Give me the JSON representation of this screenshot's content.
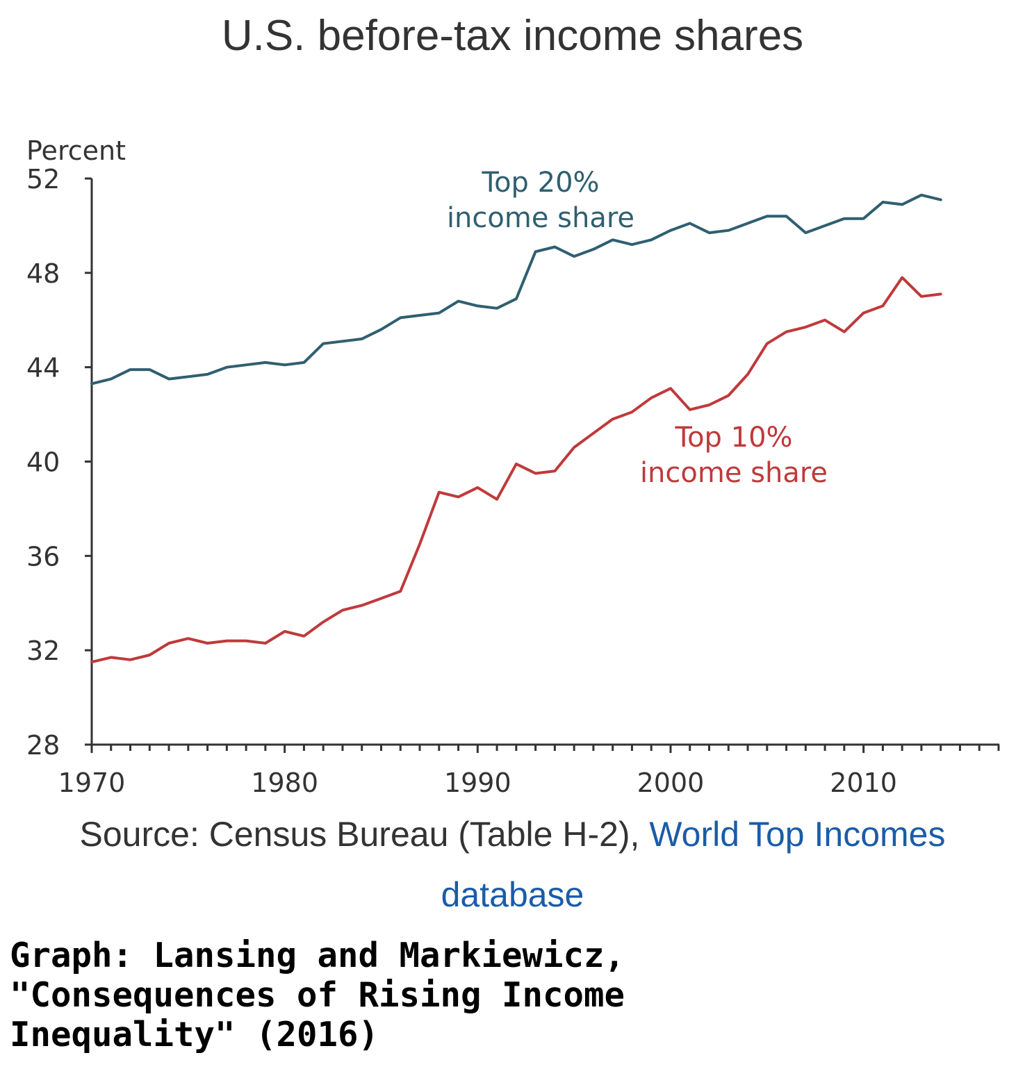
{
  "title": "U.S. before-tax income shares",
  "chart_data": {
    "type": "line",
    "ylabel": "Percent",
    "xlabel": "",
    "ylim": [
      28,
      52
    ],
    "yticks": [
      28,
      32,
      36,
      40,
      44,
      48,
      52
    ],
    "xlim": [
      1970,
      2017
    ],
    "xticks": [
      1970,
      1980,
      1990,
      2000,
      2010
    ],
    "grid": false,
    "x": [
      1970,
      1971,
      1972,
      1973,
      1974,
      1975,
      1976,
      1977,
      1978,
      1979,
      1980,
      1981,
      1982,
      1983,
      1984,
      1985,
      1986,
      1987,
      1988,
      1989,
      1990,
      1991,
      1992,
      1993,
      1994,
      1995,
      1996,
      1997,
      1998,
      1999,
      2000,
      2001,
      2002,
      2003,
      2004,
      2005,
      2006,
      2007,
      2008,
      2009,
      2010,
      2011,
      2012,
      2013,
      2014
    ],
    "series": [
      {
        "name": "Top 20% income share",
        "label_line1": "Top 20%",
        "label_line2": "income share",
        "color": "#2f5f70",
        "values": [
          43.3,
          43.5,
          43.9,
          43.9,
          43.5,
          43.6,
          43.7,
          44.0,
          44.1,
          44.2,
          44.1,
          44.2,
          45.0,
          45.1,
          45.2,
          45.6,
          46.1,
          46.2,
          46.3,
          46.8,
          46.6,
          46.5,
          46.9,
          48.9,
          49.1,
          48.7,
          49.0,
          49.4,
          49.2,
          49.4,
          49.8,
          50.1,
          49.7,
          49.8,
          50.1,
          50.4,
          50.4,
          49.7,
          50.0,
          50.3,
          50.3,
          51.0,
          50.9,
          51.3,
          51.1
        ]
      },
      {
        "name": "Top 10% income share",
        "label_line1": "Top 10%",
        "label_line2": "income share",
        "color": "#c0393b",
        "values": [
          31.5,
          31.7,
          31.6,
          31.8,
          32.3,
          32.5,
          32.3,
          32.4,
          32.4,
          32.3,
          32.8,
          32.6,
          33.2,
          33.7,
          33.9,
          34.2,
          34.5,
          36.5,
          38.7,
          38.5,
          38.9,
          38.4,
          39.9,
          39.5,
          39.6,
          40.6,
          41.2,
          41.8,
          42.1,
          42.7,
          43.1,
          42.2,
          42.4,
          42.8,
          43.7,
          45.0,
          45.5,
          45.7,
          46.0,
          45.5,
          46.3,
          46.6,
          47.8,
          47.0,
          47.1
        ]
      }
    ]
  },
  "source": {
    "prefix": "Source: Census Bureau (Table H-2), ",
    "link_part1": "World Top Incomes",
    "link_part2": "database"
  },
  "credit": "Graph: Lansing and Markiewicz,\n\"Consequences of Rising Income\nInequality\" (2016)"
}
